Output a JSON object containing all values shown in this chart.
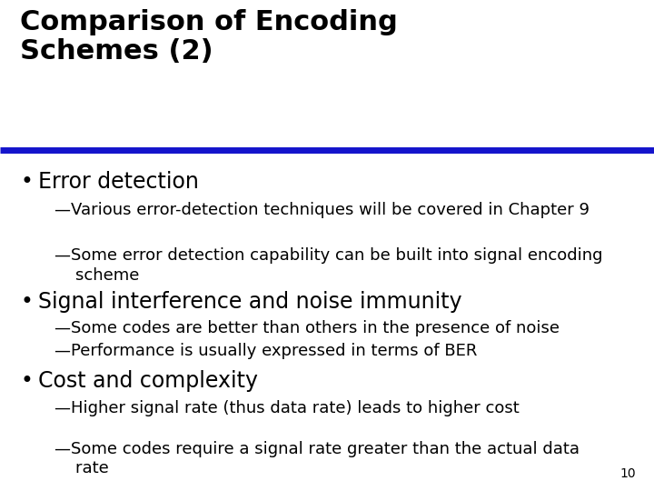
{
  "title_line1": "Comparison of Encoding",
  "title_line2": "Schemes (2)",
  "title_color": "#000000",
  "rule_color": "#1414CC",
  "bg_color": "#ffffff",
  "slide_number": "10",
  "title_fontsize": 22,
  "bullet0_fontsize": 17,
  "bullet1_fontsize": 13,
  "content": [
    {
      "level": 0,
      "text": "Error detection"
    },
    {
      "level": 1,
      "text": "—Various error-detection techniques will be covered in Chapter 9"
    },
    {
      "level": 1,
      "text": "—Some error detection capability can be built into signal encoding\n    scheme"
    },
    {
      "level": 0,
      "text": "Signal interference and noise immunity"
    },
    {
      "level": 1,
      "text": "—Some codes are better than others in the presence of noise"
    },
    {
      "level": 1,
      "text": "—Performance is usually expressed in terms of BER"
    },
    {
      "level": 0,
      "text": "Cost and complexity"
    },
    {
      "level": 1,
      "text": "—Higher signal rate (thus data rate) leads to higher cost"
    },
    {
      "level": 1,
      "text": "—Some codes require a signal rate greater than the actual data\n    rate"
    }
  ]
}
